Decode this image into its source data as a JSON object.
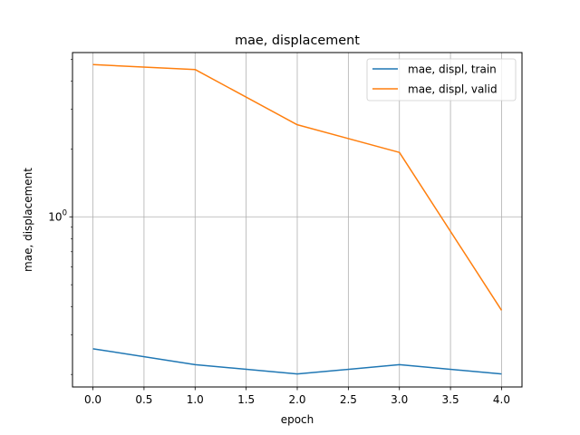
{
  "chart_data": {
    "type": "line",
    "title": "mae, displacement",
    "xlabel": "epoch",
    "ylabel": "mae, displacement",
    "yscale": "log",
    "grid": true,
    "legend_position": "top-right",
    "x_ticks": [
      "0.0",
      "0.5",
      "1.0",
      "1.5",
      "2.0",
      "2.5",
      "3.0",
      "3.5",
      "4.0"
    ],
    "y_ticks": [
      {
        "value": 1,
        "label_base": "10",
        "label_exp": "0"
      }
    ],
    "xlim": [
      -0.2,
      4.2
    ],
    "ylim": [
      0.176,
      5.35
    ],
    "x": [
      0,
      1,
      2,
      3,
      4
    ],
    "series": [
      {
        "name": "mae, displ, train",
        "color": "#1f77b4",
        "values": [
          0.26,
          0.221,
          0.201,
          0.221,
          0.201
        ]
      },
      {
        "name": "mae, displ, valid",
        "color": "#ff7f0e",
        "values": [
          4.73,
          4.5,
          2.56,
          1.93,
          0.385
        ]
      }
    ]
  }
}
